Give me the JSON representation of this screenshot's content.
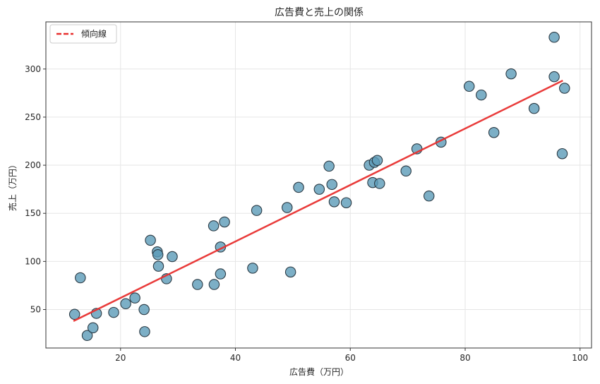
{
  "chart_data": {
    "type": "scatter",
    "title": "広告費と売上の関係",
    "xlabel": "広告費（万円）",
    "ylabel": "売上（万円）",
    "xlim": [
      7,
      102
    ],
    "ylim": [
      10,
      349
    ],
    "xticks": [
      20,
      40,
      60,
      80,
      100
    ],
    "yticks": [
      50,
      100,
      150,
      200,
      250,
      300
    ],
    "grid": true,
    "legend": {
      "position": "top-left",
      "entries": [
        "傾向線"
      ]
    },
    "colors": {
      "points": "#5b9bb8",
      "point_edge": "#2b3a44",
      "trend": "#e8302f",
      "grid": "#e6e6e6",
      "frame": "#333333"
    },
    "series": [
      {
        "kind": "scatter",
        "points": [
          [
            12.0,
            45
          ],
          [
            13.0,
            83
          ],
          [
            14.2,
            23
          ],
          [
            15.2,
            31
          ],
          [
            15.8,
            46
          ],
          [
            18.8,
            47
          ],
          [
            20.9,
            56
          ],
          [
            22.5,
            62
          ],
          [
            24.1,
            50
          ],
          [
            24.2,
            27
          ],
          [
            25.2,
            122
          ],
          [
            26.4,
            110
          ],
          [
            26.5,
            107
          ],
          [
            26.6,
            95
          ],
          [
            28.0,
            82
          ],
          [
            29.0,
            105
          ],
          [
            33.4,
            76
          ],
          [
            36.2,
            137
          ],
          [
            36.3,
            76
          ],
          [
            37.4,
            87
          ],
          [
            37.4,
            115
          ],
          [
            38.1,
            141
          ],
          [
            43.0,
            93
          ],
          [
            43.7,
            153
          ],
          [
            49.0,
            156
          ],
          [
            49.6,
            89
          ],
          [
            51.0,
            177
          ],
          [
            54.6,
            175
          ],
          [
            56.3,
            199
          ],
          [
            56.8,
            180
          ],
          [
            57.2,
            162
          ],
          [
            59.3,
            161
          ],
          [
            63.3,
            200
          ],
          [
            63.9,
            182
          ],
          [
            64.2,
            203
          ],
          [
            64.7,
            205
          ],
          [
            65.1,
            181
          ],
          [
            69.7,
            194
          ],
          [
            71.6,
            217
          ],
          [
            73.7,
            168
          ],
          [
            75.8,
            224
          ],
          [
            80.7,
            282
          ],
          [
            82.8,
            273
          ],
          [
            85.0,
            234
          ],
          [
            88.0,
            295
          ],
          [
            92.0,
            259
          ],
          [
            95.5,
            292
          ],
          [
            95.5,
            333
          ],
          [
            96.9,
            212
          ],
          [
            97.3,
            280
          ]
        ]
      },
      {
        "kind": "line",
        "name": "傾向線",
        "points": [
          [
            11.8,
            38
          ],
          [
            97.0,
            288
          ]
        ]
      }
    ]
  }
}
